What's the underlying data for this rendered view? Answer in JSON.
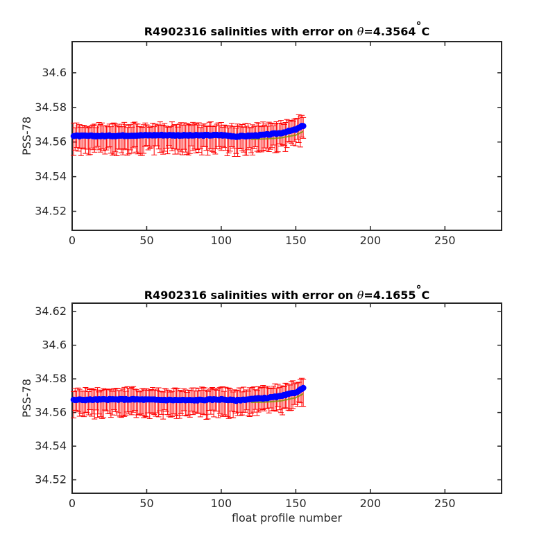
{
  "figure": {
    "xlabel": "float profile number"
  },
  "chart_data": [
    {
      "type": "scatter",
      "title_prefix": "R4902316 salinities with error on ",
      "title_theta": "θ",
      "title_value": "=4.3564",
      "title_deg": "°",
      "title_unit": "C",
      "ylabel": "PSS-78",
      "xlim": [
        0,
        288
      ],
      "ylim": [
        34.509,
        34.618
      ],
      "xticks": [
        0,
        50,
        100,
        150,
        200,
        250
      ],
      "yticks": [
        34.52,
        34.54,
        34.56,
        34.58,
        34.6
      ],
      "ytick_labels": [
        "34.52",
        "34.54",
        "34.56",
        "34.58",
        "34.6"
      ],
      "profiles": [
        1,
        155
      ],
      "salinity_anchors": {
        "x": [
          1,
          20,
          40,
          60,
          80,
          100,
          110,
          120,
          130,
          140,
          150,
          155
        ],
        "y": [
          34.5635,
          34.5635,
          34.5638,
          34.564,
          34.5638,
          34.564,
          34.5632,
          34.5636,
          34.5642,
          34.5652,
          34.5672,
          34.5695
        ]
      },
      "error_bar_range": [
        34.549,
        34.575
      ],
      "colors": {
        "salinity": "#0000ff",
        "error": "#ff0000",
        "calibration": "#ff0000",
        "mapped": "#7a9a00"
      }
    },
    {
      "type": "scatter",
      "title_prefix": "R4902316 salinities with error on ",
      "title_theta": "θ",
      "title_value": "=4.1655",
      "title_deg": "°",
      "title_unit": "C",
      "ylabel": "PSS-78",
      "xlim": [
        0,
        288
      ],
      "ylim": [
        34.512,
        34.625
      ],
      "xticks": [
        0,
        50,
        100,
        150,
        200,
        250
      ],
      "yticks": [
        34.52,
        34.54,
        34.56,
        34.58,
        34.6,
        34.62
      ],
      "ytick_labels": [
        "34.52",
        "34.54",
        "34.56",
        "34.58",
        "34.6",
        "34.62"
      ],
      "profiles": [
        1,
        155
      ],
      "salinity_anchors": {
        "x": [
          1,
          20,
          40,
          60,
          80,
          100,
          110,
          120,
          130,
          140,
          150,
          155
        ],
        "y": [
          34.5675,
          34.5677,
          34.5678,
          34.5675,
          34.5673,
          34.5678,
          34.5672,
          34.568,
          34.5686,
          34.5697,
          34.572,
          34.5745
        ]
      },
      "error_bar_range": [
        34.553,
        34.579
      ],
      "colors": {
        "salinity": "#0000ff",
        "error": "#ff0000",
        "calibration": "#ff0000",
        "mapped": "#7a9a00"
      }
    }
  ]
}
